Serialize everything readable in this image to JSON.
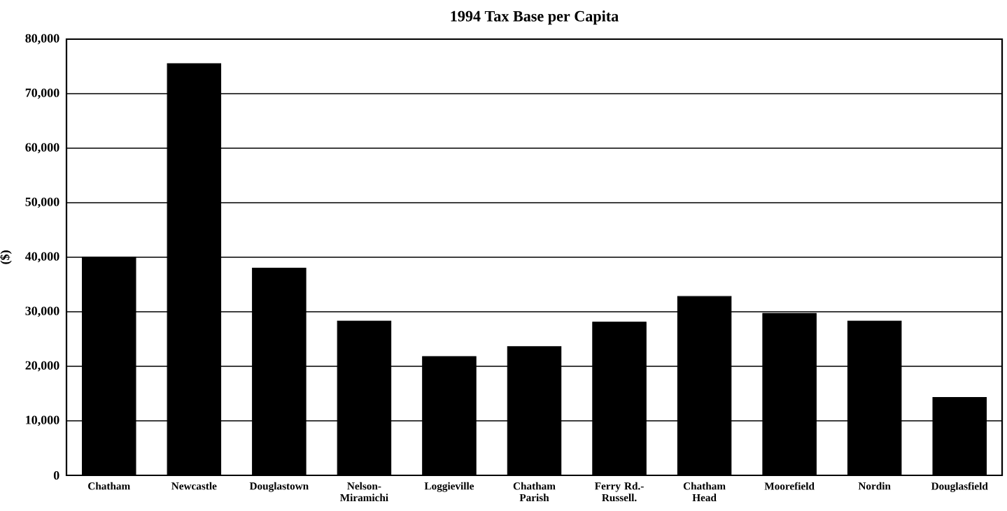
{
  "chart_data": {
    "type": "bar",
    "title": "1994 Tax Base per Capita",
    "ylabel": "($)",
    "categories": [
      "Chatham",
      "Newcastle",
      "Douglastown",
      "Nelson-Miramichi",
      "Loggieville",
      "Chatham Parish",
      "Ferry Rd.-Russell.",
      "Chatham Head",
      "Moorefield",
      "Nordin",
      "Douglasfield"
    ],
    "values": [
      40000,
      75500,
      38000,
      28300,
      21800,
      23600,
      28100,
      32800,
      29700,
      28300,
      14300
    ],
    "color": "#000000",
    "ylim": [
      0,
      80000
    ],
    "yticks": [
      {
        "value": 0,
        "label": "0"
      },
      {
        "value": 10000,
        "label": "10,000"
      },
      {
        "value": 20000,
        "label": "20,000"
      },
      {
        "value": 30000,
        "label": "30,000"
      },
      {
        "value": 40000,
        "label": "40,000"
      },
      {
        "value": 50000,
        "label": "50,000"
      },
      {
        "value": 60000,
        "label": "60,000"
      },
      {
        "value": 70000,
        "label": "70,000"
      },
      {
        "value": 80000,
        "label": "80,000"
      }
    ],
    "grid": "y"
  }
}
